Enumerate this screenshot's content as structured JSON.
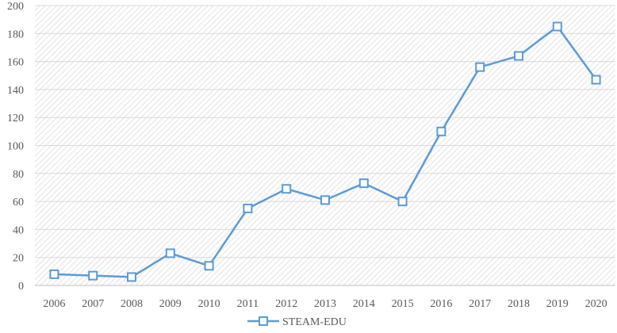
{
  "chart_data": {
    "type": "line",
    "title": "",
    "xlabel": "",
    "ylabel": "",
    "categories": [
      "2006",
      "2007",
      "2008",
      "2009",
      "2010",
      "2011",
      "2012",
      "2013",
      "2014",
      "2015",
      "2016",
      "2017",
      "2018",
      "2019",
      "2020"
    ],
    "series": [
      {
        "name": "STEAM-EDU",
        "color": "#5B9BD5",
        "marker": "square-open",
        "values": [
          8,
          7,
          6,
          23,
          14,
          55,
          69,
          61,
          73,
          60,
          110,
          156,
          164,
          185,
          147
        ]
      }
    ],
    "ylim": [
      0,
      200
    ],
    "yticks": [
      0,
      20,
      40,
      60,
      80,
      100,
      120,
      140,
      160,
      180,
      200
    ],
    "grid": true,
    "plot_background": "diagonal-hatch",
    "legend_position": "bottom-center"
  }
}
